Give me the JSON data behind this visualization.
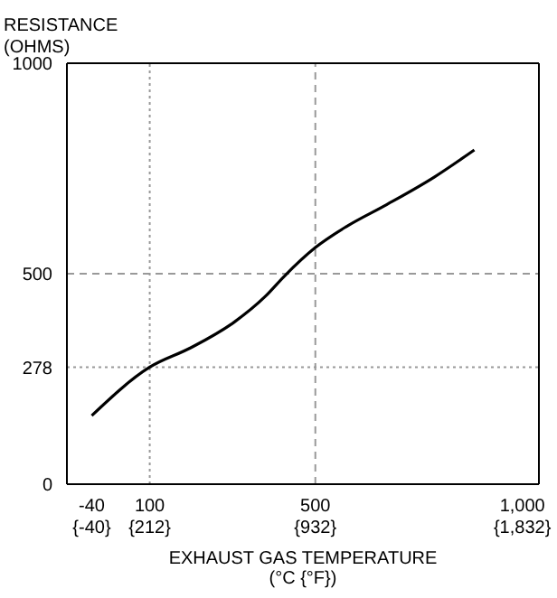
{
  "chart_data": {
    "type": "line",
    "xlabel": "EXHAUST GAS TEMPERATURE\n(°C {°F})",
    "ylabel": "RESISTANCE\n(OHMS)",
    "x": [
      -40,
      100,
      199,
      304,
      379,
      424,
      500,
      575,
      672,
      788,
      884
    ],
    "series": [
      {
        "color": "#000000",
        "values": [
          163,
          278,
          324,
          385,
          446,
          493,
          562,
          612,
          664,
          730,
          794
        ]
      }
    ],
    "xlim": [
      -100,
      1040
    ],
    "ylim": [
      0,
      1000
    ],
    "xticks": [
      -40,
      100,
      500,
      {
        "value": 1000,
        "label": "1,000"
      }
    ],
    "x2lim": [
      -148,
      1904
    ],
    "x2ticks": [
      {
        "value": -40,
        "label": "{-40}"
      },
      {
        "value": 212,
        "label": "{212}"
      },
      {
        "value": 932,
        "label": "{932}"
      },
      {
        "value": 1832,
        "label": "{1,832}"
      }
    ],
    "yticks": [
      0,
      278,
      500,
      1000
    ],
    "ref_lines": [
      {
        "axis": "x",
        "value": 100,
        "line_style": "dotted",
        "color": "#999999"
      },
      {
        "axis": "y",
        "value": 278,
        "line_style": "dotted",
        "color": "#999999"
      },
      {
        "axis": "x",
        "value": 500,
        "line_style": "dashed",
        "color": "#999999"
      },
      {
        "axis": "y",
        "value": 500,
        "line_style": "dashed",
        "color": "#999999"
      }
    ],
    "grid": false,
    "legend": false,
    "marker": "none",
    "line_style": "solid"
  }
}
